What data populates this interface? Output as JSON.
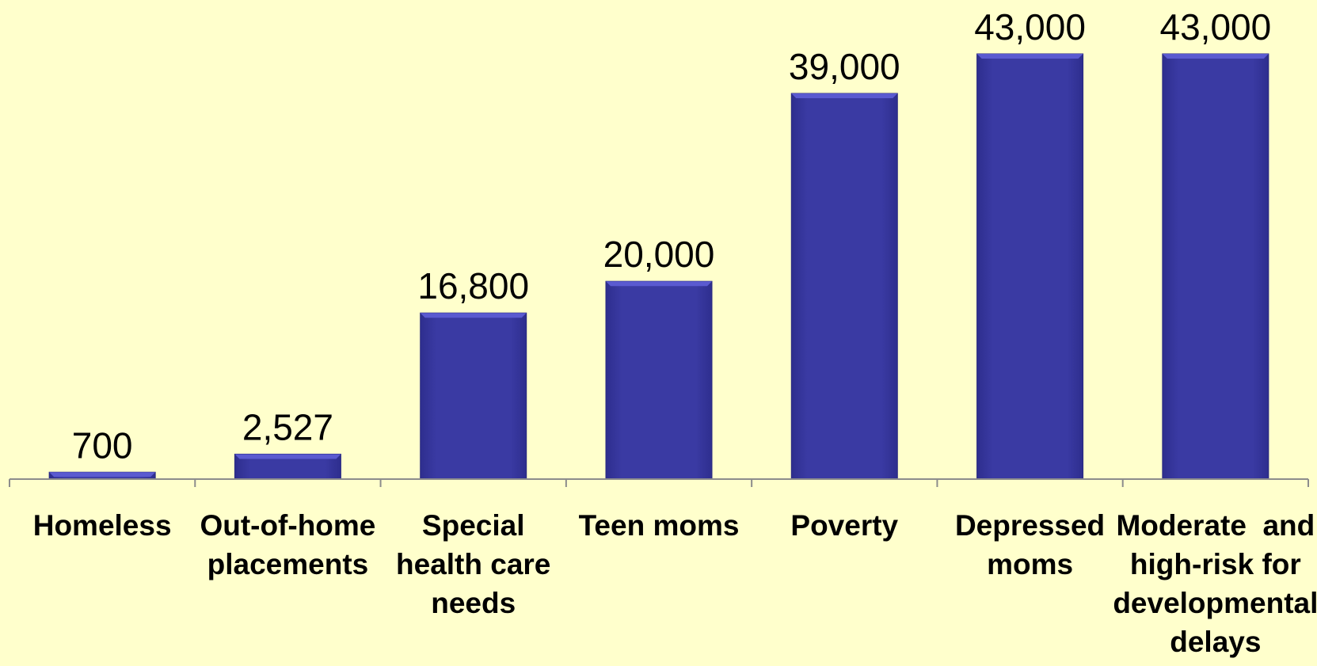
{
  "colors": {
    "background": "#FFFFCC",
    "bar": "#3A3AA3",
    "bar_top": "#5A5AD0",
    "axis": "#8C8C8C"
  },
  "chart_data": {
    "type": "bar",
    "title": "",
    "xlabel": "",
    "ylabel": "",
    "ylim": [
      0,
      43000
    ],
    "grid": false,
    "legend": "none",
    "categories": [
      [
        "Homeless"
      ],
      [
        "Out-of-home",
        "placements"
      ],
      [
        "Special",
        "health care",
        "needs"
      ],
      [
        "Teen moms"
      ],
      [
        "Poverty"
      ],
      [
        "Depressed",
        "moms"
      ],
      [
        "Moderate  and",
        "high-risk for",
        "developmental",
        "delays"
      ]
    ],
    "values": [
      700,
      2527,
      16800,
      20000,
      39000,
      43000,
      43000
    ],
    "value_labels": [
      "700",
      "2,527",
      "16,800",
      "20,000",
      "39,000",
      "43,000",
      "43,000"
    ]
  }
}
